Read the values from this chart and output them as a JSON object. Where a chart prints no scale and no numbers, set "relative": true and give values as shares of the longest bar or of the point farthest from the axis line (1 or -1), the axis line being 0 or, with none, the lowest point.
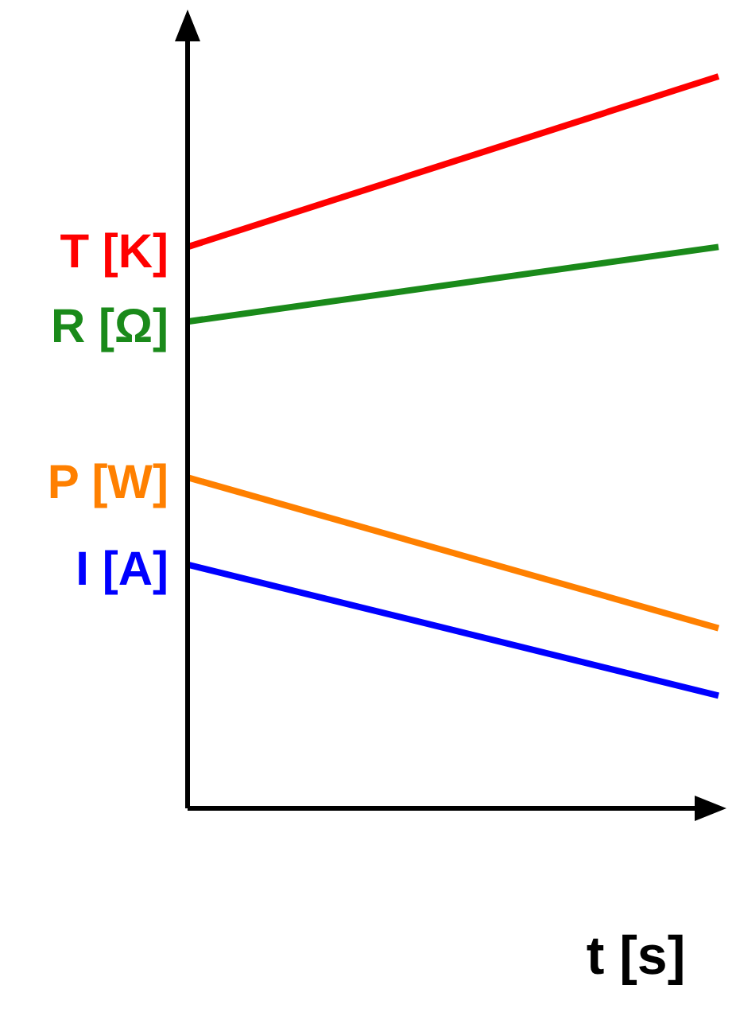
{
  "chart_data": {
    "type": "line",
    "relative": true,
    "xlabel": "t [s]",
    "categories": [
      null,
      null
    ],
    "marker": "none",
    "series": [
      {
        "name": "T [K]",
        "color": "#ff0000",
        "values": [
          0.767,
          1
        ]
      },
      {
        "name": "R [Ω]",
        "color": "#1a8a1a",
        "values": [
          0.665,
          0.767
        ]
      },
      {
        "name": "P [W]",
        "color": "#ff8000",
        "values": [
          0.452,
          0.246
        ]
      },
      {
        "name": "I [A]",
        "color": "#0000ff",
        "values": [
          0.333,
          0.154
        ]
      }
    ]
  }
}
